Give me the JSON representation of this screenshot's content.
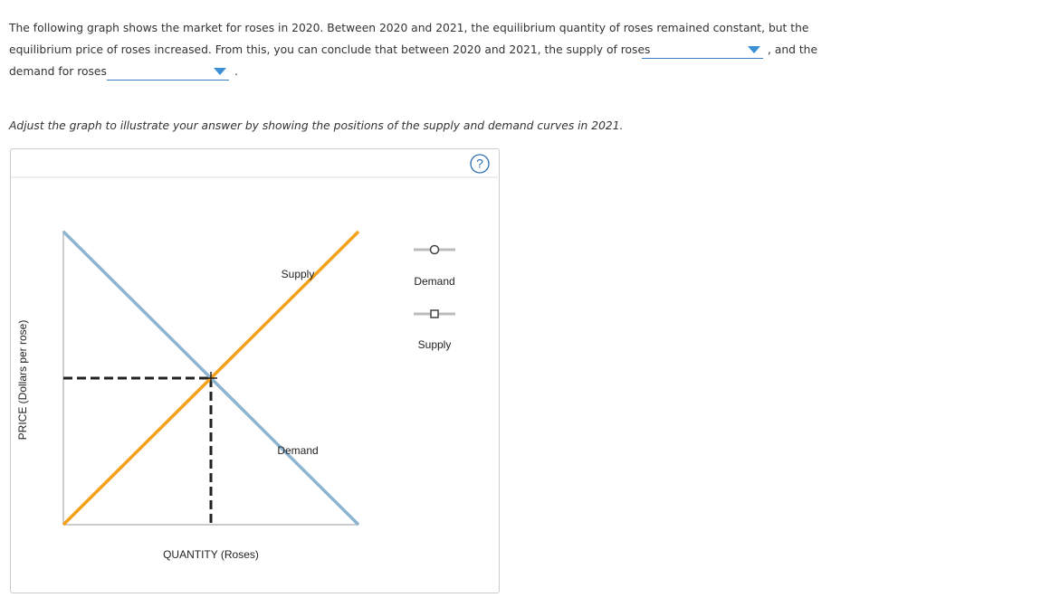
{
  "question": {
    "lines": [
      "The following graph shows the market for roses in 2020. Between 2020 and 2021, the equilibrium quantity of roses remained constant, but the",
      "equilibrium price of roses increased. From this, you can conclude that between 2020 and 2021, the supply of roses",
      ", and the",
      "demand for roses",
      "."
    ],
    "instruction": "Adjust the graph to illustrate your answer by showing the positions of the supply and demand curves in 2021."
  },
  "graph": {
    "help": "?",
    "y_axis_label": "PRICE (Dollars per rose)",
    "x_axis_label": "QUANTITY (Roses)",
    "curve_labels": [
      "Supply",
      "Demand"
    ],
    "palette": [
      "Demand",
      "Supply"
    ]
  }
}
